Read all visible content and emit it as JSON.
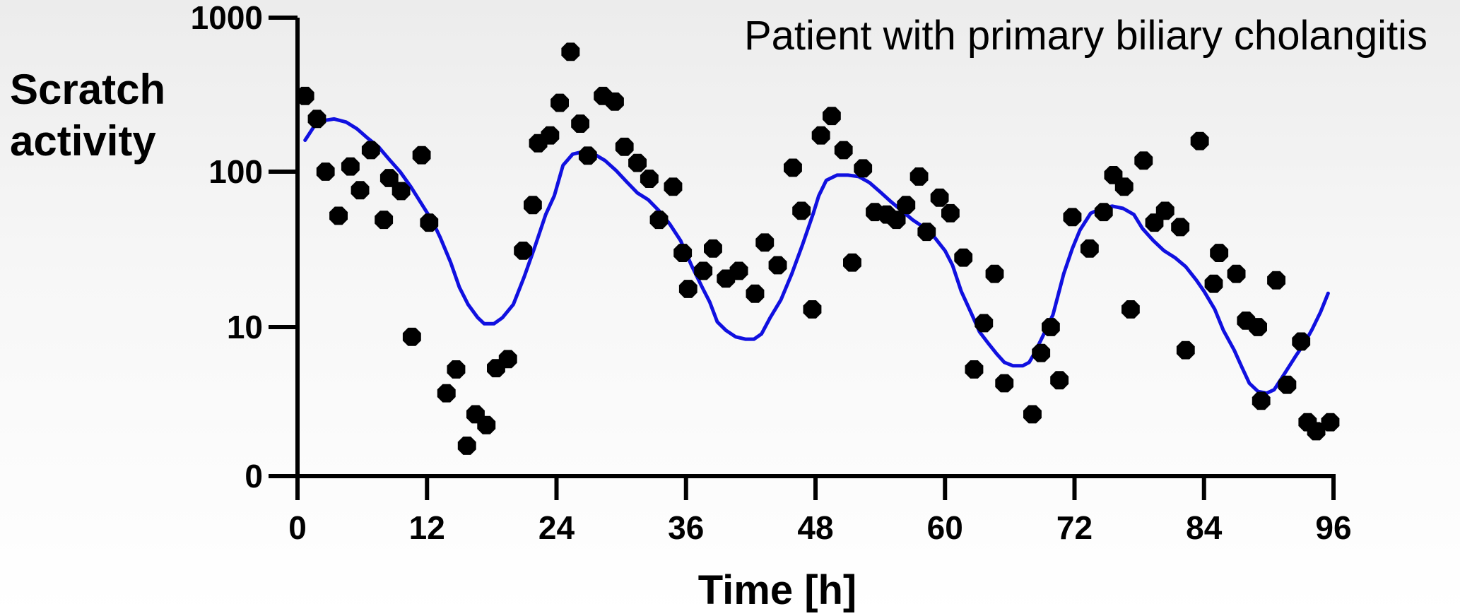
{
  "chart_data": {
    "type": "scatter",
    "title": "Patient with primary biliary cholangitis",
    "xlabel": "Time  [h]",
    "ylabel_lines": [
      "Scratch",
      "activity"
    ],
    "xlim": [
      0,
      96
    ],
    "x_ticks": [
      0,
      12,
      24,
      36,
      48,
      60,
      72,
      84,
      96
    ],
    "y_scale": "log",
    "ylim": [
      1,
      1000
    ],
    "y_ticks": [
      {
        "value": 1,
        "label": "0"
      },
      {
        "value": 10,
        "label": "10"
      },
      {
        "value": 100,
        "label": "100"
      },
      {
        "value": 1000,
        "label": "1000"
      }
    ],
    "grid": false,
    "series": [
      {
        "kind": "points",
        "color": "#000000",
        "points": [
          [
            0.7,
            310
          ],
          [
            1.8,
            220
          ],
          [
            2.6,
            100
          ],
          [
            3.8,
            52
          ],
          [
            4.9,
            108
          ],
          [
            5.8,
            76
          ],
          [
            6.8,
            138
          ],
          [
            8.0,
            49
          ],
          [
            8.5,
            91
          ],
          [
            9.6,
            75
          ],
          [
            10.6,
            8.6
          ],
          [
            11.5,
            128
          ],
          [
            12.2,
            47
          ],
          [
            13.8,
            3.6
          ],
          [
            14.7,
            5.2
          ],
          [
            15.7,
            1.6
          ],
          [
            16.5,
            2.6
          ],
          [
            17.5,
            2.2
          ],
          [
            18.4,
            5.3
          ],
          [
            19.5,
            6.1
          ],
          [
            20.9,
            31
          ],
          [
            21.8,
            61
          ],
          [
            22.3,
            153
          ],
          [
            23.4,
            172
          ],
          [
            24.3,
            280
          ],
          [
            25.3,
            600
          ],
          [
            26.2,
            205
          ],
          [
            26.9,
            127
          ],
          [
            28.3,
            310
          ],
          [
            29.4,
            285
          ],
          [
            30.3,
            145
          ],
          [
            31.5,
            114
          ],
          [
            32.6,
            90
          ],
          [
            33.5,
            49
          ],
          [
            34.8,
            80
          ],
          [
            35.7,
            30
          ],
          [
            36.2,
            17.6
          ],
          [
            37.6,
            23
          ],
          [
            38.5,
            32
          ],
          [
            39.7,
            20.5
          ],
          [
            40.9,
            23
          ],
          [
            42.4,
            16.4
          ],
          [
            43.3,
            35
          ],
          [
            44.5,
            25
          ],
          [
            45.9,
            106
          ],
          [
            46.7,
            56
          ],
          [
            47.7,
            13
          ],
          [
            48.5,
            172
          ],
          [
            49.5,
            230
          ],
          [
            50.6,
            138
          ],
          [
            51.4,
            26
          ],
          [
            52.4,
            105
          ],
          [
            53.5,
            55
          ],
          [
            54.6,
            53
          ],
          [
            55.5,
            49
          ],
          [
            56.4,
            61
          ],
          [
            57.6,
            93
          ],
          [
            58.3,
            41
          ],
          [
            59.5,
            68
          ],
          [
            60.5,
            54
          ],
          [
            61.7,
            28
          ],
          [
            62.7,
            5.2
          ],
          [
            63.6,
            10.6
          ],
          [
            64.6,
            22
          ],
          [
            65.5,
            4.2
          ],
          [
            68.1,
            2.6
          ],
          [
            68.9,
            6.7
          ],
          [
            69.8,
            10
          ],
          [
            70.6,
            4.4
          ],
          [
            71.8,
            51
          ],
          [
            73.4,
            32
          ],
          [
            74.7,
            55
          ],
          [
            75.6,
            95
          ],
          [
            76.6,
            80
          ],
          [
            77.2,
            13
          ],
          [
            78.4,
            118
          ],
          [
            79.4,
            47
          ],
          [
            80.4,
            56
          ],
          [
            81.8,
            44
          ],
          [
            82.3,
            7.0
          ],
          [
            83.6,
            158
          ],
          [
            84.9,
            19
          ],
          [
            85.4,
            30
          ],
          [
            87.0,
            22
          ],
          [
            87.9,
            11
          ],
          [
            89.0,
            10
          ],
          [
            89.3,
            3.2
          ],
          [
            90.7,
            20
          ],
          [
            91.7,
            4.1
          ],
          [
            93.0,
            8.0
          ],
          [
            93.6,
            2.3
          ],
          [
            94.4,
            2.0
          ],
          [
            95.7,
            2.3
          ]
        ]
      },
      {
        "kind": "line",
        "color": "#1010e0",
        "points": [
          [
            0.7,
            160
          ],
          [
            1.5,
            195
          ],
          [
            2.5,
            215
          ],
          [
            3.4,
            220
          ],
          [
            4.5,
            210
          ],
          [
            5.5,
            190
          ],
          [
            6.5,
            165
          ],
          [
            7.5,
            145
          ],
          [
            8.5,
            120
          ],
          [
            9.5,
            100
          ],
          [
            10.5,
            80
          ],
          [
            11.5,
            62
          ],
          [
            12.5,
            48
          ],
          [
            13.2,
            38
          ],
          [
            14.2,
            26
          ],
          [
            15.0,
            18
          ],
          [
            15.8,
            14
          ],
          [
            16.7,
            11.5
          ],
          [
            17.3,
            10.5
          ],
          [
            18.2,
            10.5
          ],
          [
            19.0,
            11.5
          ],
          [
            20.0,
            14
          ],
          [
            21.0,
            21
          ],
          [
            22.0,
            33
          ],
          [
            23.0,
            53
          ],
          [
            23.8,
            70
          ],
          [
            24.6,
            110
          ],
          [
            25.5,
            130
          ],
          [
            26.5,
            135
          ],
          [
            27.5,
            130
          ],
          [
            28.5,
            118
          ],
          [
            29.5,
            102
          ],
          [
            30.5,
            86
          ],
          [
            31.5,
            73
          ],
          [
            32.5,
            66
          ],
          [
            33.5,
            56
          ],
          [
            34.5,
            46
          ],
          [
            35.5,
            36
          ],
          [
            36.5,
            25
          ],
          [
            37.5,
            18
          ],
          [
            38.2,
            14.5
          ],
          [
            38.9,
            10.8
          ],
          [
            39.7,
            9.5
          ],
          [
            40.6,
            8.6
          ],
          [
            41.5,
            8.3
          ],
          [
            42.3,
            8.3
          ],
          [
            43.0,
            9.0
          ],
          [
            43.8,
            11.5
          ],
          [
            44.8,
            15
          ],
          [
            45.8,
            22
          ],
          [
            46.8,
            34
          ],
          [
            47.8,
            54
          ],
          [
            48.3,
            70
          ],
          [
            49.0,
            88
          ],
          [
            50.0,
            95
          ],
          [
            51.0,
            95
          ],
          [
            52.0,
            93
          ],
          [
            53.0,
            85
          ],
          [
            54.0,
            74
          ],
          [
            55.0,
            64
          ],
          [
            56.0,
            56
          ],
          [
            57.0,
            49
          ],
          [
            58.0,
            44
          ],
          [
            59.0,
            38
          ],
          [
            60.0,
            31
          ],
          [
            60.7,
            25
          ],
          [
            61.5,
            17
          ],
          [
            62.5,
            12
          ],
          [
            63.2,
            9.3
          ],
          [
            64.0,
            7.8
          ],
          [
            64.8,
            6.6
          ],
          [
            65.5,
            5.8
          ],
          [
            66.3,
            5.5
          ],
          [
            67.2,
            5.5
          ],
          [
            67.8,
            5.8
          ],
          [
            68.3,
            6.7
          ],
          [
            69.0,
            8.5
          ],
          [
            70.0,
            12
          ],
          [
            71.0,
            22
          ],
          [
            71.8,
            32
          ],
          [
            72.5,
            42
          ],
          [
            73.5,
            54
          ],
          [
            74.5,
            58
          ],
          [
            75.5,
            60
          ],
          [
            76.5,
            58
          ],
          [
            77.5,
            53
          ],
          [
            78.3,
            43
          ],
          [
            79.3,
            36
          ],
          [
            80.3,
            31
          ],
          [
            81.3,
            28
          ],
          [
            82.3,
            24.5
          ],
          [
            83.3,
            20
          ],
          [
            84.0,
            17
          ],
          [
            85.0,
            13
          ],
          [
            85.8,
            9.5
          ],
          [
            86.8,
            7.0
          ],
          [
            87.5,
            5.4
          ],
          [
            88.2,
            4.2
          ],
          [
            89.0,
            3.7
          ],
          [
            89.8,
            3.6
          ],
          [
            90.5,
            3.8
          ],
          [
            91.4,
            4.8
          ],
          [
            92.5,
            6.4
          ],
          [
            93.3,
            7.8
          ],
          [
            94.0,
            9.6
          ],
          [
            94.8,
            12.5
          ],
          [
            95.5,
            16.5
          ]
        ]
      }
    ]
  }
}
